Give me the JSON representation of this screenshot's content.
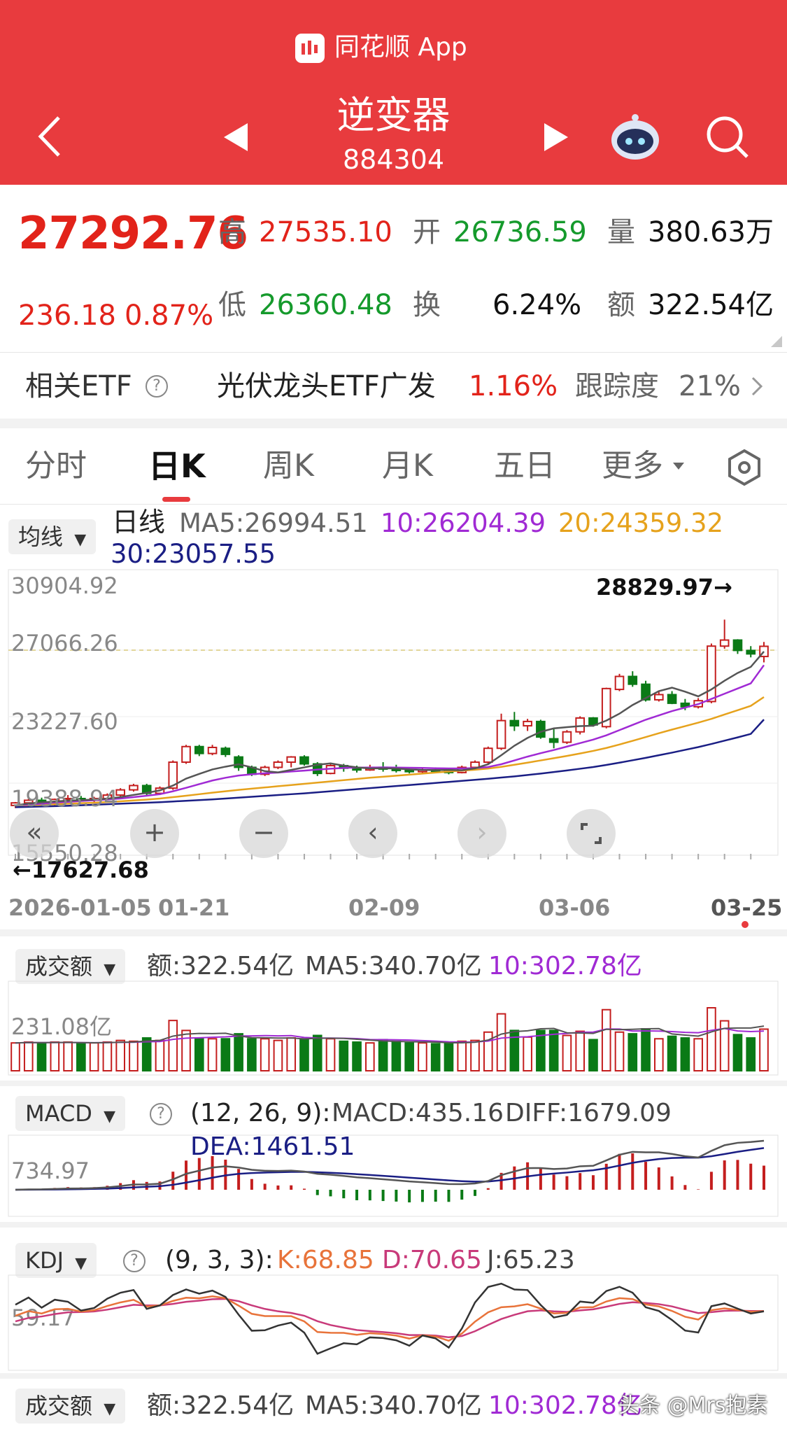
{
  "app": {
    "name": "同花顺 App"
  },
  "header": {
    "title": "逆变器",
    "code": "884304"
  },
  "quote": {
    "price": "27292.76",
    "change": "236.18",
    "change_pct": "0.87%",
    "high_label": "高",
    "high": "27535.10",
    "open_label": "开",
    "open": "26736.59",
    "vol_label": "量",
    "vol": "380.63万",
    "low_label": "低",
    "low": "26360.48",
    "turnover_label": "换",
    "turnover": "6.24%",
    "amount_label": "额",
    "amount": "322.54亿"
  },
  "etf": {
    "label": "相关ETF",
    "name": "光伏龙头ETF广发",
    "pct": "1.16%",
    "track_label": "跟踪度",
    "track": "21%"
  },
  "tabs": [
    {
      "label": "分时"
    },
    {
      "label": "日K"
    },
    {
      "label": "周K"
    },
    {
      "label": "月K"
    },
    {
      "label": "五日"
    },
    {
      "label": "更多"
    }
  ],
  "kline": {
    "dropdown": "均线",
    "period": "日线",
    "ma5": "MA5:26994.51",
    "ma10": "10:26204.39",
    "ma20": "20:24359.32",
    "ma30": "30:23057.55",
    "y_ticks": [
      "30904.92",
      "27066.26",
      "23227.60",
      "19388.94",
      "15550.28"
    ],
    "max_label": "28829.97→",
    "min_label": "←17627.68",
    "x_ticks": [
      "2026-01-05",
      "01-21",
      "02-09",
      "03-06",
      "03-25"
    ]
  },
  "volume": {
    "dropdown": "成交额",
    "amount": "额:322.54亿",
    "ma5": "MA5:340.70亿",
    "ma10": "10:302.78亿",
    "y_tick": "231.08亿"
  },
  "macd": {
    "dropdown": "MACD",
    "params": "(12, 26, 9):",
    "macd": "MACD:435.16",
    "diff": "DIFF:1679.09",
    "dea": "DEA:1461.51",
    "y_tick": "734.97"
  },
  "kdj": {
    "dropdown": "KDJ",
    "params": "(9, 3, 3):",
    "k": "K:68.85",
    "d": "D:70.65",
    "j": "J:65.23",
    "y_tick": "59.17"
  },
  "volume2": {
    "dropdown": "成交额",
    "amount": "额:322.54亿",
    "ma5": "MA5:340.70亿",
    "ma10": "10:302.78亿"
  },
  "watermark": "头条 @Mrs抱素",
  "colors": {
    "header": "#e83b3e",
    "up": "#c41e1e",
    "down": "#0a7a16",
    "ma5": "#555555",
    "ma10": "#a02ad4",
    "ma20": "#e6a21c",
    "ma30": "#1a1e84"
  },
  "chart_data": {
    "type": "candlestick",
    "candles": [
      [
        18100,
        18300,
        17950,
        18250
      ],
      [
        18250,
        18500,
        18100,
        18400
      ],
      [
        18400,
        18550,
        18200,
        18300
      ],
      [
        18300,
        18500,
        18100,
        18450
      ],
      [
        18450,
        18700,
        18300,
        18500
      ],
      [
        18500,
        18650,
        18350,
        18400
      ],
      [
        18400,
        18600,
        18250,
        18500
      ],
      [
        18500,
        18800,
        18400,
        18700
      ],
      [
        18700,
        19100,
        18600,
        19000
      ],
      [
        19000,
        19350,
        18900,
        19250
      ],
      [
        19250,
        19350,
        18700,
        18800
      ],
      [
        18800,
        19200,
        18700,
        19100
      ],
      [
        19100,
        20700,
        19000,
        20600
      ],
      [
        20600,
        21600,
        20500,
        21500
      ],
      [
        21500,
        21600,
        20950,
        21100
      ],
      [
        21100,
        21600,
        21000,
        21450
      ],
      [
        21400,
        21500,
        20900,
        21050
      ],
      [
        20900,
        21000,
        20100,
        20300
      ],
      [
        20300,
        20400,
        19800,
        19900
      ],
      [
        19900,
        20400,
        19800,
        20300
      ],
      [
        20300,
        20700,
        20200,
        20600
      ],
      [
        20600,
        20950,
        20300,
        20900
      ],
      [
        20900,
        21000,
        20400,
        20500
      ],
      [
        20500,
        20600,
        19800,
        19950
      ],
      [
        19950,
        20500,
        19900,
        20400
      ],
      [
        20400,
        20500,
        20050,
        20250
      ],
      [
        20250,
        20400,
        20000,
        20150
      ],
      [
        20150,
        20450,
        20100,
        20300
      ],
      [
        20300,
        20600,
        20050,
        20200
      ],
      [
        20200,
        20450,
        20000,
        20150
      ],
      [
        20150,
        20300,
        19950,
        20050
      ],
      [
        20050,
        20250,
        19900,
        20150
      ],
      [
        20150,
        20300,
        20000,
        20100
      ],
      [
        20100,
        20250,
        19900,
        20000
      ],
      [
        20000,
        20400,
        19950,
        20300
      ],
      [
        20300,
        20700,
        20200,
        20600
      ],
      [
        20600,
        21500,
        20500,
        21400
      ],
      [
        21400,
        23400,
        21300,
        23000
      ],
      [
        23000,
        23500,
        22400,
        22700
      ],
      [
        22700,
        23100,
        22400,
        22950
      ],
      [
        22950,
        23050,
        21950,
        22050
      ],
      [
        21950,
        22500,
        21400,
        21750
      ],
      [
        21750,
        22450,
        21650,
        22350
      ],
      [
        22350,
        23250,
        22200,
        23150
      ],
      [
        23150,
        23200,
        22650,
        22750
      ],
      [
        22650,
        24900,
        22550,
        24850
      ],
      [
        24800,
        25700,
        24700,
        25550
      ],
      [
        25550,
        25850,
        24950,
        25100
      ],
      [
        25100,
        25300,
        24100,
        24200
      ],
      [
        24200,
        24700,
        24100,
        24500
      ],
      [
        24500,
        24700,
        23950,
        24000
      ],
      [
        24000,
        24250,
        23600,
        23800
      ],
      [
        23800,
        24300,
        23700,
        24150
      ],
      [
        24100,
        27450,
        24000,
        27300
      ],
      [
        27300,
        28830,
        27150,
        27650
      ],
      [
        27650,
        27700,
        26850,
        27050
      ],
      [
        27050,
        27300,
        26650,
        26850
      ],
      [
        26700,
        27540,
        26360,
        27290
      ]
    ],
    "ma5": [
      18100,
      18210,
      18280,
      18330,
      18380,
      18410,
      18440,
      18490,
      18580,
      18710,
      18830,
      18970,
      19250,
      19650,
      19920,
      20180,
      20340,
      20480,
      20300,
      20080,
      20010,
      20150,
      20300,
      20450,
      20530,
      20400,
      20300,
      20240,
      20250,
      20230,
      20180,
      20150,
      20140,
      20150,
      20130,
      20240,
      20480,
      21000,
      21550,
      22000,
      22350,
      22550,
      22620,
      22680,
      22700,
      23000,
      23400,
      23900,
      24300,
      24700,
      24900,
      24670,
      24400,
      24800,
      25300,
      25750,
      26100,
      26990
    ],
    "ma10": [
      18100,
      18150,
      18200,
      18270,
      18310,
      18360,
      18400,
      18450,
      18500,
      18580,
      18660,
      18750,
      18920,
      19120,
      19330,
      19540,
      19700,
      19830,
      19900,
      19960,
      20000,
      20060,
      20110,
      20170,
      20220,
      20270,
      20290,
      20290,
      20300,
      20290,
      20280,
      20270,
      20250,
      20240,
      20240,
      20260,
      20320,
      20480,
      20700,
      20920,
      21120,
      21300,
      21500,
      21700,
      21900,
      22150,
      22450,
      22750,
      23050,
      23300,
      23550,
      23750,
      23950,
      24250,
      24550,
      24850,
      25150,
      26200
    ],
    "ma20": [
      18100,
      18120,
      18140,
      18170,
      18200,
      18230,
      18260,
      18300,
      18340,
      18390,
      18440,
      18500,
      18580,
      18660,
      18750,
      18840,
      18920,
      19000,
      19070,
      19140,
      19210,
      19280,
      19350,
      19420,
      19490,
      19560,
      19630,
      19700,
      19760,
      19820,
      19880,
      19940,
      20000,
      20060,
      20110,
      20160,
      20230,
      20330,
      20450,
      20570,
      20700,
      20830,
      20960,
      21100,
      21250,
      21420,
      21620,
      21830,
      22050,
      22270,
      22480,
      22680,
      22880,
      23100,
      23350,
      23600,
      23850,
      24360
    ],
    "ma30": [
      18000,
      18020,
      18040,
      18060,
      18080,
      18110,
      18140,
      18170,
      18200,
      18230,
      18260,
      18290,
      18330,
      18370,
      18410,
      18450,
      18500,
      18550,
      18600,
      18650,
      18700,
      18750,
      18800,
      18860,
      18920,
      18980,
      19040,
      19100,
      19160,
      19220,
      19280,
      19340,
      19400,
      19460,
      19520,
      19580,
      19640,
      19710,
      19780,
      19860,
      19940,
      20030,
      20120,
      20220,
      20320,
      20440,
      20570,
      20710,
      20850,
      21000,
      21150,
      21310,
      21470,
      21650,
      21840,
      22030,
      22230,
      23060
    ]
  }
}
